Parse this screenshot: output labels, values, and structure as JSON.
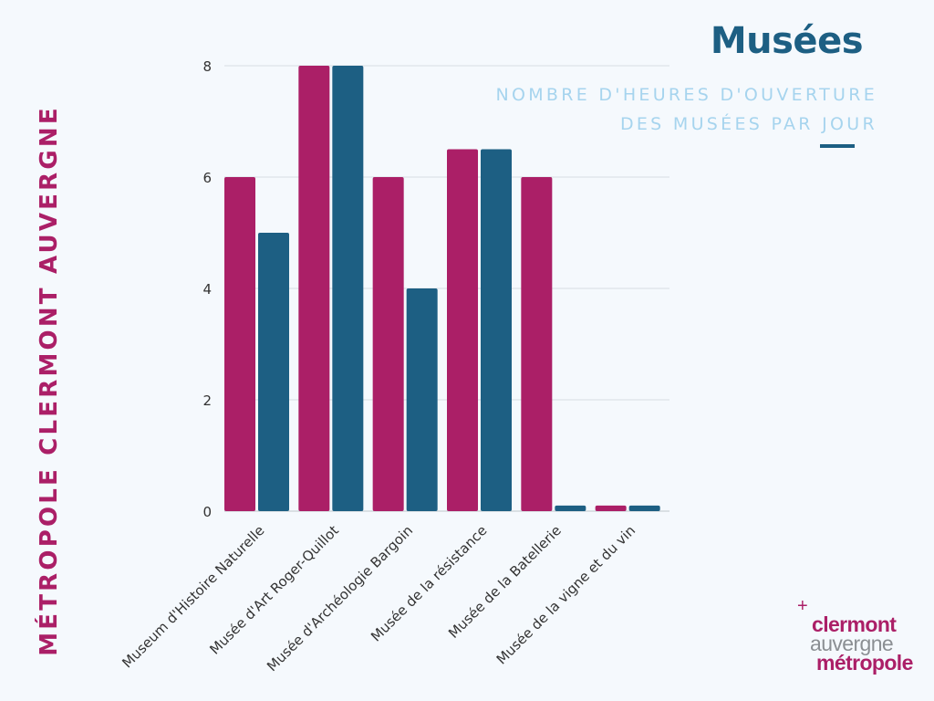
{
  "side_title": "MÉTROPOLE CLERMONT AUVERGNE",
  "title": "Musées",
  "subtitle": [
    "NOMBRE D'HEURES D'OUVERTURE",
    "DES MUSÉES PAR JOUR"
  ],
  "logo": {
    "plus": "+",
    "line1": "clermont",
    "line2": "auvergne",
    "line3": "métropole"
  },
  "colors": {
    "series_1": "#ab1f67",
    "series_2": "#1d5f83",
    "grid": "#d8dde2",
    "text": "#333333"
  },
  "chart_data": {
    "type": "bar",
    "categories": [
      "Museum d'Histoire Naturelle",
      "Musée d'Art Roger-Quillot",
      "Musée d'Archéologie Bargoin",
      "Musée de la résistance",
      "Musée de la Batellerie",
      "Musée de la vigne et du vin"
    ],
    "series": [
      {
        "color": "#ab1f67",
        "values": [
          6,
          8,
          6,
          6.5,
          6,
          0.1
        ]
      },
      {
        "color": "#1d5f83",
        "values": [
          5,
          8,
          4,
          6.5,
          0.1,
          0.1
        ]
      }
    ],
    "yticks": [
      "0",
      "2",
      "4",
      "6",
      "8"
    ],
    "ylim": [
      0,
      8
    ],
    "grid": true,
    "legend": "none"
  }
}
